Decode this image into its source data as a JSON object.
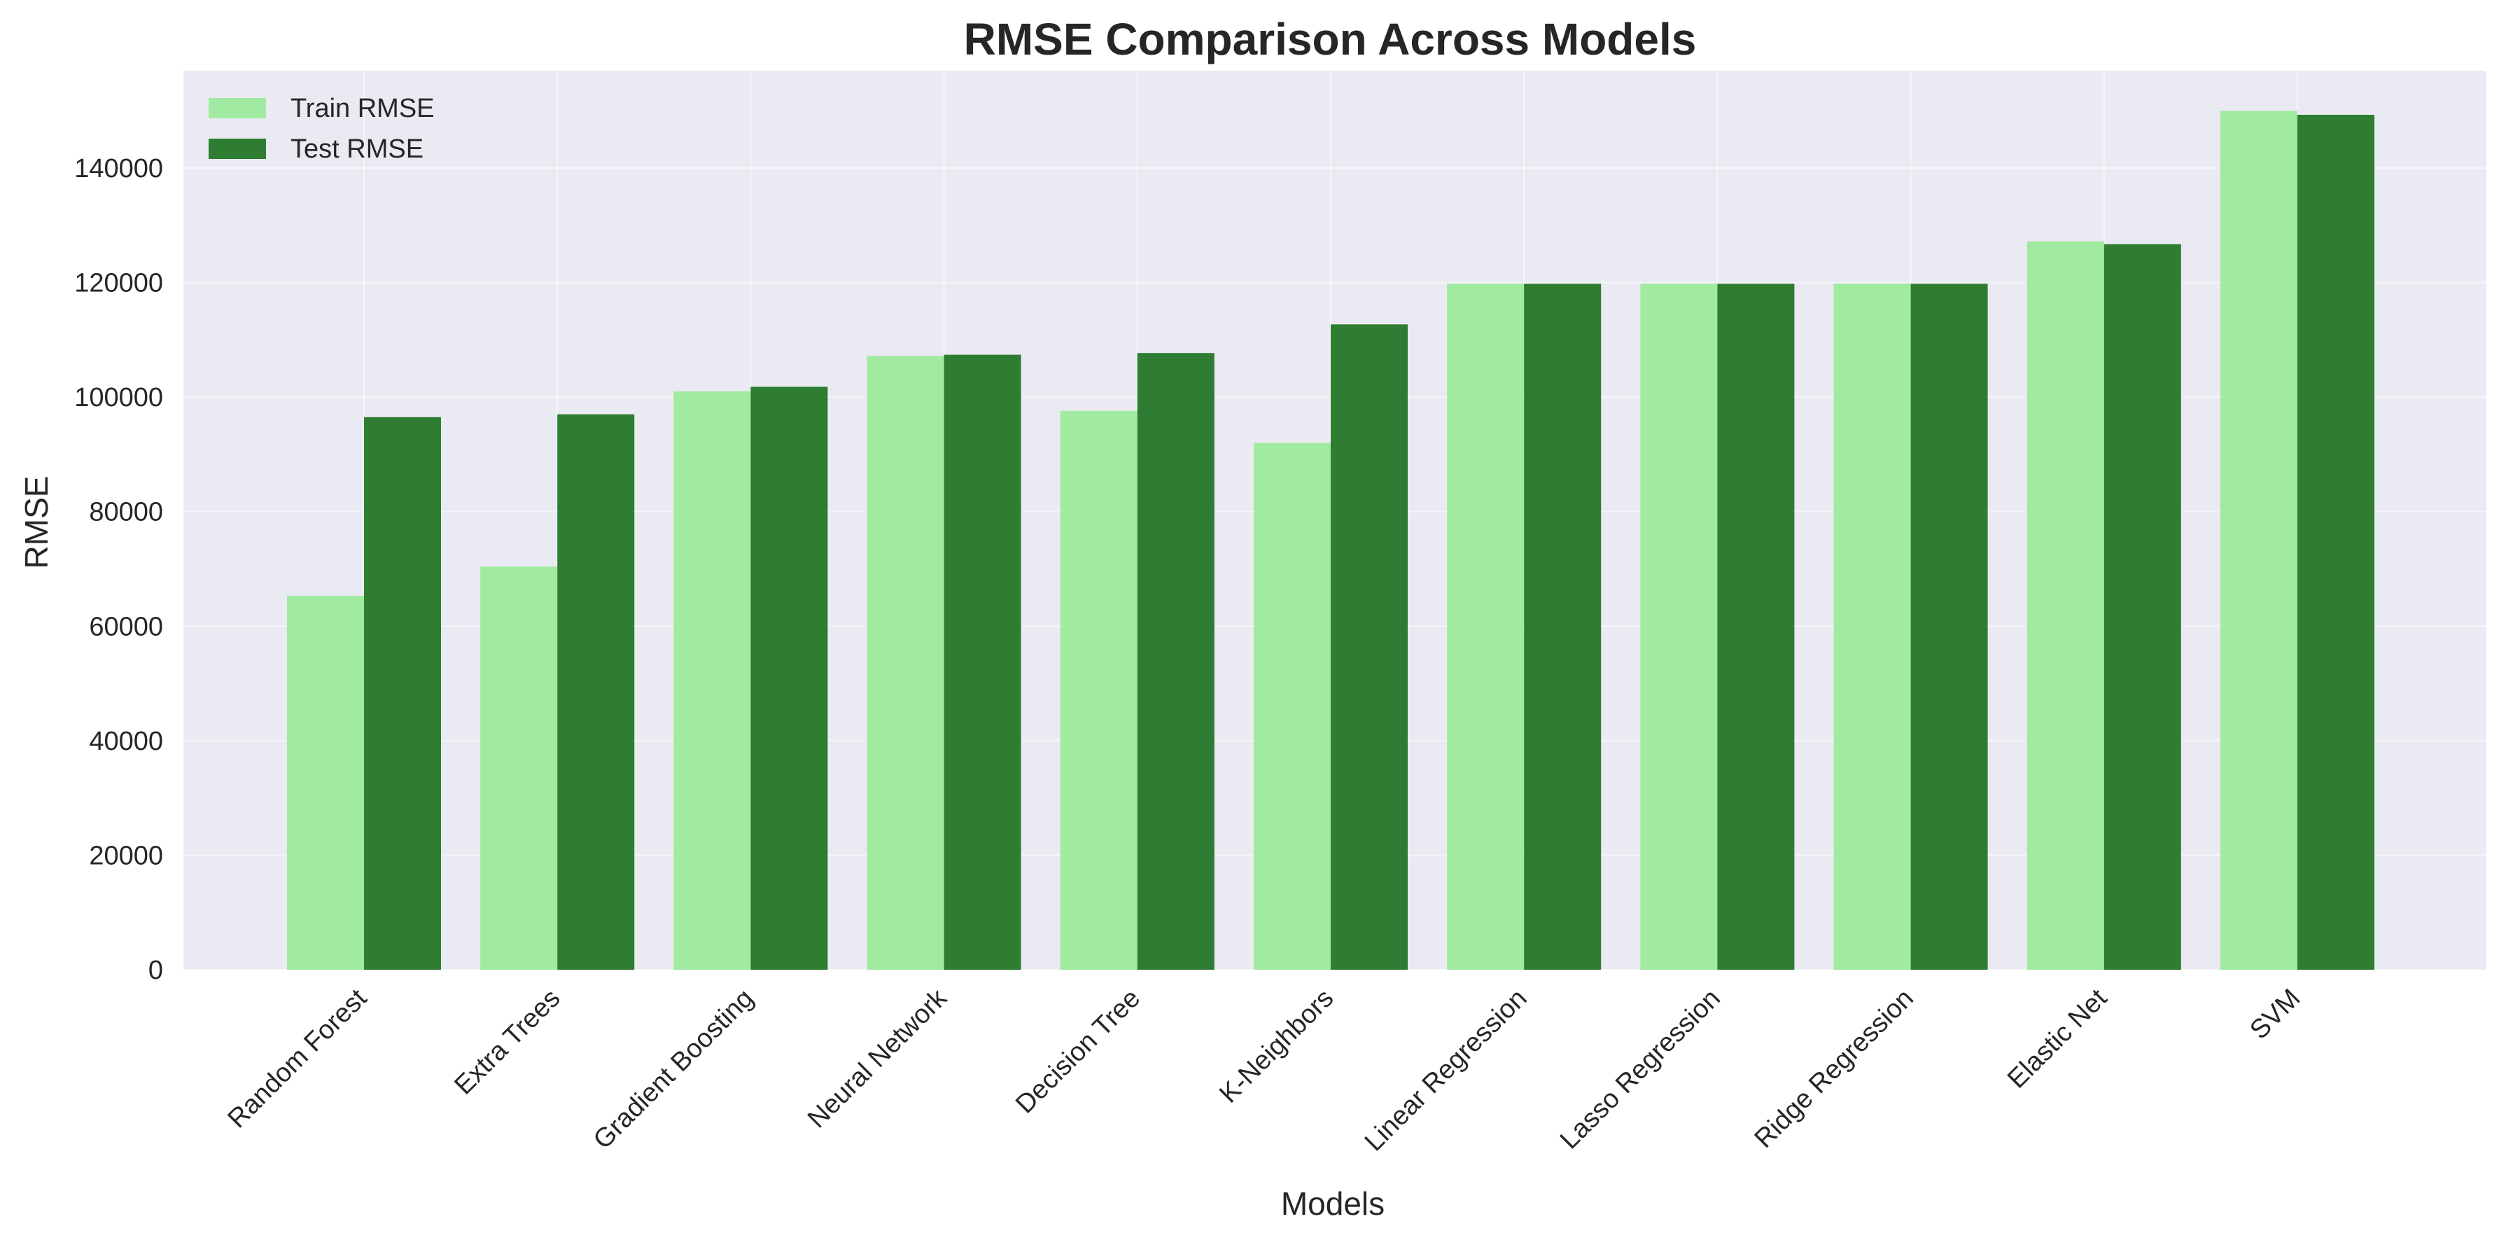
{
  "chart_data": {
    "type": "bar",
    "title": "RMSE Comparison Across Models",
    "xlabel": "Models",
    "ylabel": "RMSE",
    "categories": [
      "Random Forest",
      "Extra Trees",
      "Gradient Boosting",
      "Neural Network",
      "Decision Tree",
      "K-Neighbors",
      "Linear Regression",
      "Lasso Regression",
      "Ridge Regression",
      "Elastic Net",
      "SVM"
    ],
    "series": [
      {
        "name": "Train RMSE",
        "color": "#a1eaa1",
        "values": [
          65300,
          70400,
          101000,
          107200,
          97600,
          92000,
          119800,
          119800,
          119800,
          127200,
          150000
        ]
      },
      {
        "name": "Test RMSE",
        "color": "#2e7d32",
        "values": [
          96500,
          97000,
          101800,
          107400,
          107700,
          112700,
          119800,
          119800,
          119800,
          126700,
          149300
        ]
      }
    ],
    "ylim": [
      0,
      157000
    ],
    "yticks": [
      0,
      20000,
      40000,
      60000,
      80000,
      100000,
      120000,
      140000
    ],
    "ytick_labels": [
      "0",
      "20000",
      "40000",
      "60000",
      "80000",
      "100000",
      "120000",
      "140000"
    ],
    "grid": true,
    "legend_position": "top-left",
    "background_color": "#eaeaf2"
  }
}
